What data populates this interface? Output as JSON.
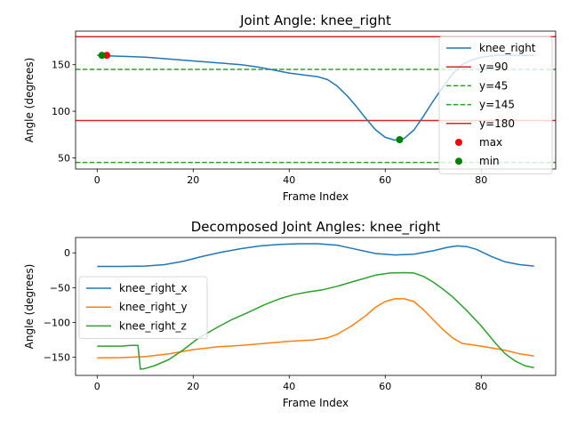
{
  "chart_data": [
    {
      "type": "line",
      "title": "Joint Angle: knee_right",
      "xlabel": "Frame Index",
      "ylabel": "Angle (degrees)",
      "xlim": [
        -4.5,
        95.5
      ],
      "ylim": [
        38,
        186
      ],
      "xticks": [
        0,
        20,
        40,
        60,
        80
      ],
      "yticks": [
        50,
        100,
        150
      ],
      "legend_position": "top-right",
      "series": [
        {
          "name": "knee_right",
          "color": "#1f77b4",
          "x": [
            0,
            2,
            5,
            10,
            15,
            20,
            25,
            30,
            34,
            37,
            40,
            43,
            46,
            48,
            50,
            52,
            54,
            56,
            58,
            60,
            62,
            63,
            64,
            66,
            68,
            70,
            72,
            74,
            76,
            78,
            80,
            83,
            86,
            89,
            91
          ],
          "y": [
            160,
            159.5,
            159,
            158,
            156,
            154,
            152,
            150,
            147,
            144,
            141,
            139,
            137,
            134,
            127,
            117,
            105,
            92,
            80,
            72,
            69,
            69.5,
            71,
            80,
            95,
            111,
            126,
            140,
            150,
            155,
            158,
            160,
            160,
            160,
            160
          ]
        }
      ],
      "hlines": [
        {
          "name": "y=90",
          "value": 90,
          "color": "#d62728",
          "style": "solid"
        },
        {
          "name": "y=45",
          "value": 45,
          "color": "#2ca02c",
          "style": "dashed"
        },
        {
          "name": "y=145",
          "value": 145,
          "color": "#2ca02c",
          "style": "dashed"
        },
        {
          "name": "y=180",
          "value": 180,
          "color": "#d62728",
          "style": "solid"
        }
      ],
      "points": [
        {
          "name": "max",
          "x": 2,
          "y": 160,
          "color": "#ff0000"
        },
        {
          "name": "min",
          "x": 63,
          "y": 69.5,
          "color": "#008000"
        },
        {
          "name": "min",
          "x": 1,
          "y": 160,
          "color": "#008000"
        }
      ],
      "legend": [
        "knee_right",
        "y=90",
        "y=45",
        "y=145",
        "y=180",
        "max",
        "min"
      ]
    },
    {
      "type": "line",
      "title": "Decomposed Joint Angles: knee_right",
      "xlabel": "Frame Index",
      "ylabel": "Angle (degrees)",
      "xlim": [
        -4.5,
        95.5
      ],
      "ylim": [
        -176,
        22
      ],
      "xticks": [
        0,
        20,
        40,
        60,
        80
      ],
      "yticks": [
        0,
        -50,
        -100,
        -150
      ],
      "legend_position": "center-left",
      "series": [
        {
          "name": "knee_right_x",
          "color": "#1f77b4",
          "x": [
            0,
            5,
            10,
            14,
            18,
            22,
            26,
            30,
            34,
            38,
            42,
            46,
            50,
            54,
            58,
            62,
            66,
            70,
            73,
            75,
            77,
            79,
            82,
            85,
            88,
            91
          ],
          "y": [
            -19.5,
            -19.5,
            -19,
            -17,
            -12,
            -5,
            1,
            6,
            10,
            12,
            13,
            13,
            11,
            5,
            -1,
            -3,
            -2,
            3,
            8,
            10,
            9,
            5,
            -5,
            -13,
            -17,
            -19
          ]
        },
        {
          "name": "knee_right_y",
          "color": "#ff7f0e",
          "x": [
            0,
            5,
            10,
            15,
            20,
            25,
            30,
            35,
            40,
            45,
            48,
            50,
            53,
            56,
            58,
            60,
            62,
            64,
            66,
            68,
            70,
            72,
            74,
            76,
            80,
            85,
            88,
            91
          ],
          "y": [
            -151,
            -150.5,
            -149,
            -145,
            -139,
            -135,
            -133,
            -130,
            -127,
            -125,
            -122,
            -117,
            -105,
            -90,
            -78,
            -70,
            -66,
            -66,
            -70,
            -82,
            -96,
            -110,
            -122,
            -130,
            -134,
            -140,
            -145,
            -148
          ]
        },
        {
          "name": "knee_right_z",
          "color": "#2ca02c",
          "x": [
            0,
            3,
            5,
            7,
            8.5,
            9,
            10,
            12,
            15,
            18,
            21,
            25,
            28,
            31,
            35,
            38,
            41,
            44,
            47,
            50,
            54,
            58,
            61,
            64,
            66,
            68,
            70,
            72,
            74,
            77,
            80,
            83,
            85,
            87,
            89,
            91
          ],
          "y": [
            -134,
            -134,
            -134,
            -133,
            -133,
            -167,
            -166,
            -162,
            -153,
            -139,
            -123,
            -107,
            -96,
            -87,
            -74,
            -66,
            -60,
            -56,
            -53,
            -48,
            -40,
            -32,
            -29,
            -28.5,
            -29,
            -34,
            -42,
            -52,
            -63,
            -83,
            -105,
            -130,
            -145,
            -155,
            -162,
            -165
          ]
        }
      ],
      "legend": [
        "knee_right_x",
        "knee_right_y",
        "knee_right_z"
      ]
    }
  ]
}
